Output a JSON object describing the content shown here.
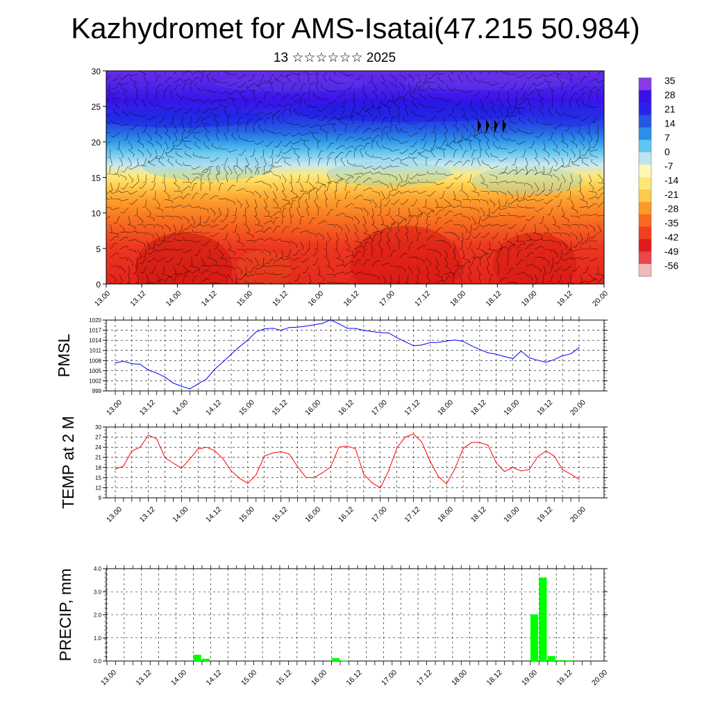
{
  "page": {
    "title": "Kazhydromet for AMS-Isatai(47.215 50.984)",
    "subtitle": "13 ☆☆☆☆☆☆ 2025"
  },
  "time_labels": [
    "13.00",
    "13.12",
    "14.00",
    "14.12",
    "15.00",
    "15.12",
    "16.00",
    "16.12",
    "17.00",
    "17.12",
    "18.00",
    "18.12",
    "19.00",
    "19.12",
    "20.00"
  ],
  "chart_data": [
    {
      "type": "heatmap",
      "name": "temperature-height-section",
      "y_ticks": [
        "0",
        "5",
        "10",
        "15",
        "20",
        "25",
        "30"
      ],
      "y_range": [
        0,
        30
      ],
      "colorbar_labels": [
        "35",
        "28",
        "21",
        "14",
        "7",
        "0",
        "-7",
        "-14",
        "-21",
        "-28",
        "-35",
        "-42",
        "-49",
        "-56"
      ],
      "colorbar_colors": [
        "#f2b9b9",
        "#e7484a",
        "#e31a1c",
        "#f03f20",
        "#f86a20",
        "#fd9a2c",
        "#feca4f",
        "#fde877",
        "#fff6b6",
        "#bfe4ef",
        "#5fc6ef",
        "#2a8fe8",
        "#2457e4",
        "#2b22e9",
        "#3b10e6",
        "#8a3be8"
      ],
      "note_values": "temperature in degC by height level; values from the colorbar scale"
    },
    {
      "type": "line",
      "name": "pmsl",
      "ylabel": "PMSL",
      "y_ticks": [
        "999",
        "1002",
        "1005",
        "1008",
        "1011",
        "1014",
        "1017",
        "1020"
      ],
      "ylim": [
        999,
        1020
      ],
      "color": "#0000ff",
      "values": [
        1007.3,
        1007.8,
        1007.1,
        1006.9,
        1005.2,
        1004.3,
        1003.1,
        1001.3,
        1000.4,
        999.6,
        1001.1,
        1002.5,
        1005.4,
        1007.6,
        1009.9,
        1012.1,
        1014.1,
        1016.5,
        1017.4,
        1017.6,
        1017.0,
        1017.8,
        1017.9,
        1018.2,
        1018.6,
        1019.0,
        1020.1,
        1018.9,
        1017.6,
        1017.5,
        1017.0,
        1016.6,
        1016.3,
        1016.2,
        1014.8,
        1013.6,
        1012.4,
        1012.6,
        1013.3,
        1013.4,
        1013.8,
        1014.1,
        1013.7,
        1012.4,
        1011.3,
        1010.3,
        1009.9,
        1009.2,
        1008.6,
        1010.8,
        1008.8,
        1008.1,
        1007.5,
        1008.3,
        1009.4,
        1010.0,
        1011.8
      ]
    },
    {
      "type": "line",
      "name": "temp2m",
      "ylabel": "TEMP at 2 M",
      "y_ticks": [
        "9",
        "12",
        "15",
        "18",
        "21",
        "24",
        "27",
        "30"
      ],
      "ylim": [
        9,
        30
      ],
      "color": "#ff0000",
      "values": [
        17.5,
        18.4,
        22.9,
        24.0,
        27.6,
        26.5,
        20.9,
        19.3,
        17.8,
        20.5,
        23.5,
        24.0,
        23.0,
        20.6,
        17.0,
        14.8,
        13.3,
        15.8,
        21.4,
        22.3,
        22.7,
        22.0,
        18.3,
        15.1,
        15.0,
        16.4,
        18.1,
        24.0,
        24.3,
        23.6,
        16.0,
        13.5,
        11.9,
        16.9,
        23.8,
        27.0,
        27.9,
        25.6,
        19.9,
        15.4,
        13.1,
        17.6,
        23.6,
        25.4,
        25.4,
        24.6,
        19.4,
        16.8,
        18.0,
        17.0,
        17.4,
        21.2,
        22.9,
        21.4,
        17.4,
        16.0,
        14.5
      ]
    },
    {
      "type": "bar",
      "name": "precip",
      "ylabel": "PRECIP, mm",
      "y_ticks": [
        "0.0",
        "1.0",
        "2.0",
        "3.0",
        "4.0"
      ],
      "ylim": [
        0,
        4.0
      ],
      "color": "#00ff00",
      "values": [
        0,
        0,
        0,
        0,
        0,
        0,
        0,
        0,
        0,
        0,
        0.27,
        0.1,
        0,
        0,
        0,
        0,
        0,
        0,
        0,
        0,
        0,
        0,
        0,
        0,
        0,
        0,
        0.13,
        0.02,
        0,
        0,
        0,
        0,
        0,
        0,
        0,
        0,
        0,
        0,
        0,
        0,
        0,
        0,
        0,
        0,
        0,
        0,
        0,
        0,
        0,
        2.02,
        3.62,
        0.21,
        0.04,
        0.03,
        0,
        0,
        0
      ]
    }
  ]
}
